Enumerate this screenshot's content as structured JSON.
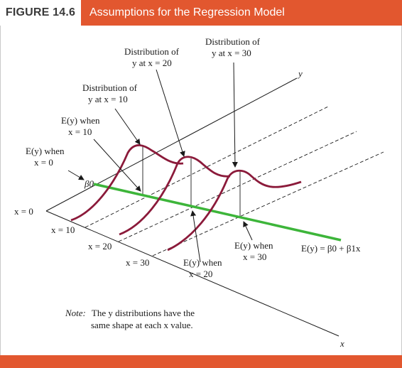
{
  "header": {
    "figure_label": "FIGURE 14.6",
    "title": "Assumptions for the Regression Model",
    "accent_color": "#e2572f"
  },
  "axes": {
    "y_label": "y",
    "x_label": "x",
    "origin_label": "x = 0"
  },
  "x_ticks": {
    "t10": "x = 10",
    "t20": "x = 20",
    "t30": "x = 30"
  },
  "annotations": {
    "dist10_l1": "Distribution of",
    "dist10_l2": "y at x = 10",
    "dist20_l1": "Distribution of",
    "dist20_l2": "y at x = 20",
    "dist30_l1": "Distribution of",
    "dist30_l2": "y at x = 30",
    "ey0_l1": "E(y) when",
    "ey0_l2": "x = 0",
    "ey10_l1": "E(y) when",
    "ey10_l2": "x = 10",
    "ey20_l1": "E(y) when",
    "ey20_l2": "x = 20",
    "ey30_l1": "E(y) when",
    "ey30_l2": "x = 30",
    "beta0": "β0",
    "regression_eq": "E(y) = β0 + β1x"
  },
  "note": {
    "label": "Note:",
    "line1_rest": "The y distributions have the",
    "line2": "same shape at each x value."
  },
  "colors": {
    "curve": "#8b1a3a",
    "regression_line": "#3db53a",
    "axis": "#1a1a1a"
  }
}
